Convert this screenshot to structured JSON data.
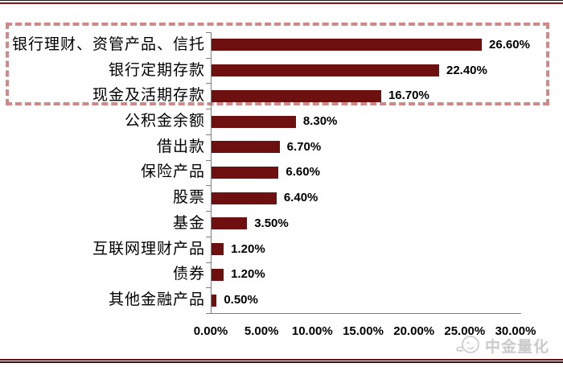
{
  "chart_data": {
    "type": "bar",
    "orientation": "horizontal",
    "title": "",
    "categories": [
      "银行理财、资管产品、信托",
      "银行定期存款",
      "现金及活期存款",
      "公积金余额",
      "借出款",
      "保险产品",
      "股票",
      "基金",
      "互联网理财产品",
      "债券",
      "其他金融产品"
    ],
    "values": [
      26.6,
      22.4,
      16.7,
      8.3,
      6.7,
      6.6,
      6.4,
      3.5,
      1.2,
      1.2,
      0.5
    ],
    "value_labels": [
      "26.60%",
      "22.40%",
      "16.70%",
      "8.30%",
      "6.70%",
      "6.60%",
      "6.40%",
      "3.50%",
      "1.20%",
      "1.20%",
      "0.50%"
    ],
    "x_tick_labels": [
      "0.00%",
      "5.00%",
      "10.00%",
      "15.00%",
      "20.00%",
      "25.00%",
      "30.00%"
    ],
    "xlim": [
      0,
      30
    ],
    "grid": false,
    "legend": null,
    "bar_color": "#6e0f10",
    "axis_color": "#7f7f7f",
    "highlighted_categories": [
      "银行理财、资管产品、信托",
      "银行定期存款",
      "现金及活期存款"
    ],
    "highlight_box_color": "#d18889"
  },
  "decorations": {
    "top_rule_black": "#1c1c1c",
    "top_rule_red": "#8a1416",
    "bottom_rule_upper": "#6d0f11",
    "bottom_rule_lower": "#45090b"
  },
  "watermark": {
    "text": "中金量化",
    "color": "#b9b9b9"
  }
}
